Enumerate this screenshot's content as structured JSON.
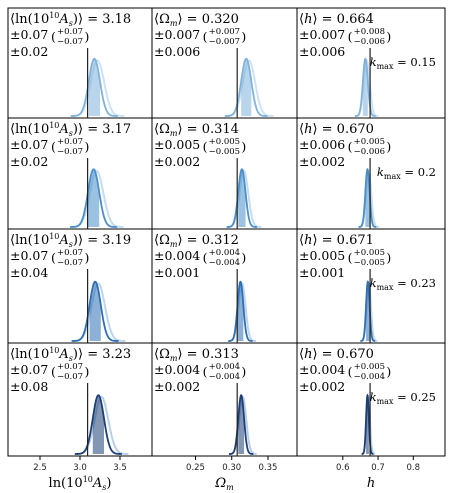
{
  "chart_data": {
    "type": "area",
    "columns": [
      {
        "key": "As",
        "xlabel": "ln(10¹⁰Aₛ)",
        "xlim": [
          2.1,
          3.9
        ],
        "xticks": [
          "2.5",
          "3.0",
          "3.5"
        ],
        "xtick_values": [
          2.5,
          3.0,
          3.5
        ],
        "truth": 3.095
      },
      {
        "key": "Om",
        "xlabel": "Ωₘ",
        "xlim": [
          0.19,
          0.39
        ],
        "xticks": [
          "0.25",
          "0.30",
          "0.35"
        ],
        "xtick_values": [
          0.25,
          0.3,
          0.35
        ],
        "truth": 0.3075
      },
      {
        "key": "h",
        "xlabel": "h",
        "xlim": [
          0.47,
          0.89
        ],
        "xticks": [
          "0.6",
          "0.7",
          "0.8"
        ],
        "xtick_values": [
          0.6,
          0.7,
          0.8
        ],
        "truth": 0.6774
      }
    ],
    "rows": [
      {
        "kmax_label": "k_max = 0.15",
        "color": "#7fb2dc",
        "ghost_color": "#cfe2f1",
        "panels": [
          {
            "name": "⟨ln(10¹⁰Aₛ)⟩ = 3.18",
            "line2": "±0.07",
            "err_plus": "+0.07",
            "err_minus": "−0.07",
            "line3": "±0.02",
            "mean": 3.18,
            "sigma": 0.07,
            "offset_sigma": 0.02
          },
          {
            "name": "⟨Ωₘ⟩ = 0.320",
            "line2": "±0.007",
            "err_plus": "+0.007",
            "err_minus": "−0.007",
            "line3": "±0.006",
            "mean": 0.32,
            "sigma": 0.007,
            "offset_sigma": 0.006
          },
          {
            "name": "⟨h⟩ = 0.664",
            "line2": "±0.007",
            "err_plus": "+0.008",
            "err_minus": "−0.006",
            "line3": "±0.006",
            "mean": 0.664,
            "sigma": 0.007,
            "offset_sigma": 0.006
          }
        ]
      },
      {
        "kmax_label": "k_max = 0.2",
        "color": "#4a8fcb",
        "ghost_color": "#c4dcee",
        "panels": [
          {
            "name": "⟨ln(10¹⁰Aₛ)⟩ = 3.17",
            "line2": "±0.07",
            "err_plus": "+0.07",
            "err_minus": "−0.07",
            "line3": "±0.02",
            "mean": 3.17,
            "sigma": 0.07,
            "offset_sigma": 0.02
          },
          {
            "name": "⟨Ωₘ⟩ = 0.314",
            "line2": "±0.005",
            "err_plus": "+0.005",
            "err_minus": "−0.005",
            "line3": "±0.002",
            "mean": 0.314,
            "sigma": 0.005,
            "offset_sigma": 0.002
          },
          {
            "name": "⟨h⟩ = 0.670",
            "line2": "±0.006",
            "err_plus": "+0.005",
            "err_minus": "−0.006",
            "line3": "±0.002",
            "mean": 0.67,
            "sigma": 0.006,
            "offset_sigma": 0.002
          }
        ]
      },
      {
        "kmax_label": "k_max = 0.23",
        "color": "#2e6fb5",
        "ghost_color": "#bdd6ec",
        "panels": [
          {
            "name": "⟨ln(10¹⁰Aₛ)⟩ = 3.19",
            "line2": "±0.07",
            "err_plus": "+0.07",
            "err_minus": "−0.07",
            "line3": "±0.04",
            "mean": 3.19,
            "sigma": 0.07,
            "offset_sigma": 0.04
          },
          {
            "name": "⟨Ωₘ⟩ = 0.312",
            "line2": "±0.004",
            "err_plus": "+0.004",
            "err_minus": "−0.004",
            "line3": "±0.001",
            "mean": 0.312,
            "sigma": 0.004,
            "offset_sigma": 0.001
          },
          {
            "name": "⟨h⟩ = 0.671",
            "line2": "±0.005",
            "err_plus": "+0.005",
            "err_minus": "−0.005",
            "line3": "±0.001",
            "mean": 0.671,
            "sigma": 0.005,
            "offset_sigma": 0.001
          }
        ]
      },
      {
        "kmax_label": "k_max = 0.25",
        "color": "#1d3f77",
        "ghost_color": "#b8cfe6",
        "panels": [
          {
            "name": "⟨ln(10¹⁰Aₛ)⟩ = 3.23",
            "line2": "±0.07",
            "err_plus": "+0.07",
            "err_minus": "−0.07",
            "line3": "±0.08",
            "mean": 3.23,
            "sigma": 0.07,
            "offset_sigma": 0.08
          },
          {
            "name": "⟨Ωₘ⟩ = 0.313",
            "line2": "±0.004",
            "err_plus": "+0.004",
            "err_minus": "−0.004",
            "line3": "±0.002",
            "mean": 0.313,
            "sigma": 0.004,
            "offset_sigma": 0.002
          },
          {
            "name": "⟨h⟩ = 0.670",
            "line2": "±0.004",
            "err_plus": "+0.005",
            "err_minus": "−0.004",
            "line3": "±0.002",
            "mean": 0.67,
            "sigma": 0.004,
            "offset_sigma": 0.002
          }
        ]
      }
    ]
  }
}
